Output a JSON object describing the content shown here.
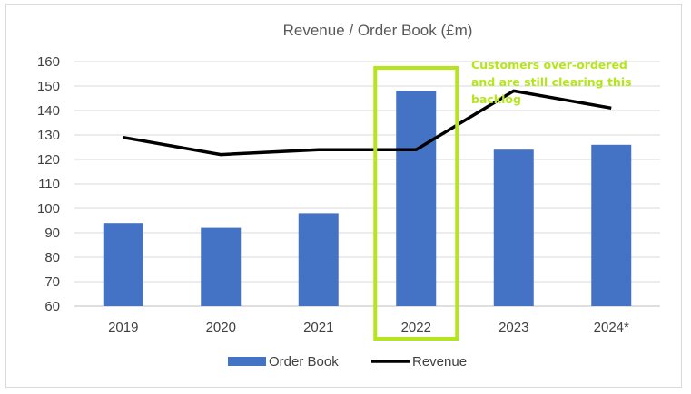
{
  "chart_data": {
    "type": "bar",
    "title": "Revenue / Order Book (£m)",
    "categories": [
      "2019",
      "2020",
      "2021",
      "2022",
      "2023",
      "2024*"
    ],
    "series": [
      {
        "name": "Order Book",
        "kind": "bar",
        "color": "#4472c4",
        "values": [
          94,
          92,
          98,
          148,
          124,
          126
        ]
      },
      {
        "name": "Revenue",
        "kind": "line",
        "color": "#000000",
        "values": [
          129,
          122,
          124,
          124,
          148,
          141
        ]
      }
    ],
    "ylim": [
      60,
      160
    ],
    "yticks": [
      "60",
      "70",
      "80",
      "90",
      "100",
      "110",
      "120",
      "130",
      "140",
      "150",
      "160"
    ],
    "grid": true,
    "legend": "bottom",
    "highlight": {
      "category": "2022",
      "color": "#b5e61d"
    },
    "annotation": {
      "lines": [
        "Customers over-ordered",
        "and are still clearing this",
        "backlog"
      ],
      "color": "#b5e61d"
    }
  }
}
